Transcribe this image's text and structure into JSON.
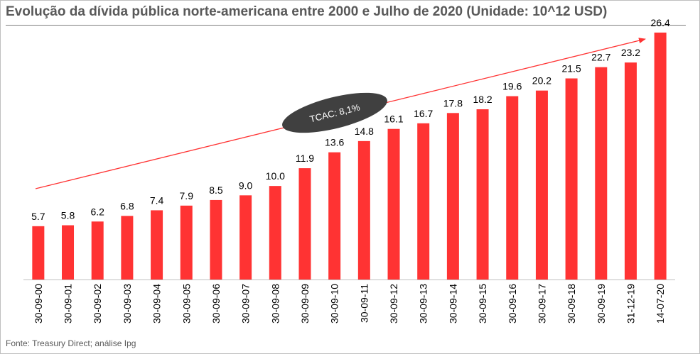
{
  "chart_data": {
    "type": "bar",
    "title": "Evolução da dívida pública norte-americana entre 2000 e Julho de 2020 (Unidade: 10^12 USD)",
    "categories": [
      "30-09-00",
      "30-09-01",
      "30-09-02",
      "30-09-03",
      "30-09-04",
      "30-09-05",
      "30-09-06",
      "30-09-07",
      "30-09-08",
      "30-09-09",
      "30-09-10",
      "30-09-11",
      "30-09-12",
      "30-09-13",
      "30-09-14",
      "30-09-15",
      "30-09-16",
      "30-09-17",
      "30-09-18",
      "30-09-19",
      "31-12-19",
      "14-07-20"
    ],
    "values": [
      5.7,
      5.8,
      6.2,
      6.8,
      7.4,
      7.9,
      8.5,
      9.0,
      10.0,
      11.9,
      13.6,
      14.8,
      16.1,
      16.7,
      17.8,
      18.2,
      19.6,
      20.2,
      21.5,
      22.7,
      23.2,
      26.4
    ],
    "value_labels": [
      "5.7",
      "5.8",
      "6.2",
      "6.8",
      "7.4",
      "7.9",
      "8.5",
      "9.0",
      "10.0",
      "11.9",
      "13.6",
      "14.8",
      "16.1",
      "16.7",
      "17.8",
      "18.2",
      "19.6",
      "20.2",
      "21.5",
      "22.7",
      "23.2",
      "26.4"
    ],
    "xlabel": "",
    "ylabel": "",
    "ylim": [
      0,
      27
    ],
    "grid": false,
    "bar_color": "#ff3333",
    "trend_arrow_color": "#ff3333",
    "annotation": "TCAC: 8,1%",
    "annotation_color": "#404040"
  },
  "source": "Fonte: Treasury Direct; análise Ipg"
}
